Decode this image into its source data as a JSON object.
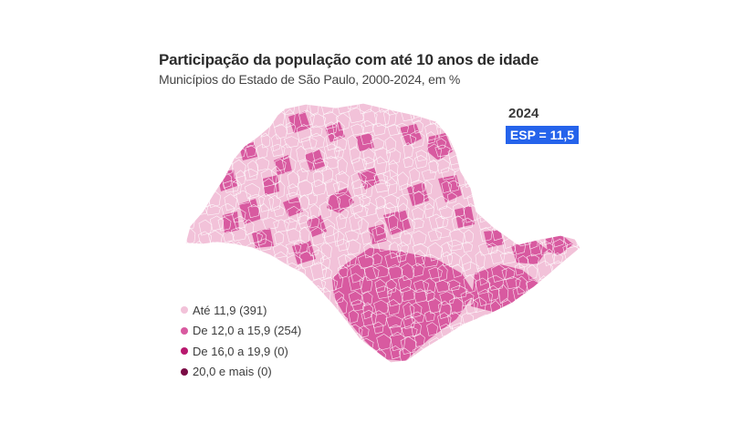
{
  "title": "Participação da população com até 10 anos de idade",
  "subtitle": "Municípios do Estado de São Paulo, 2000-2024, em %",
  "year": "2024",
  "esp_badge": {
    "label": "ESP = 11,5",
    "color": "#2563eb"
  },
  "legend": [
    {
      "label": "Até 11,9 (391)",
      "color": "#f2c2d9"
    },
    {
      "label": "De 12,0 a 15,9 (254)",
      "color": "#d85aa0"
    },
    {
      "label": "De 16,0 a 19,9 (0)",
      "color": "#b8186e"
    },
    {
      "label": "20,0 e mais (0)",
      "color": "#7a0b45"
    }
  ],
  "map_colors": {
    "low": "#f2c2d9",
    "mid": "#d85aa0",
    "border": "#ffffff"
  }
}
